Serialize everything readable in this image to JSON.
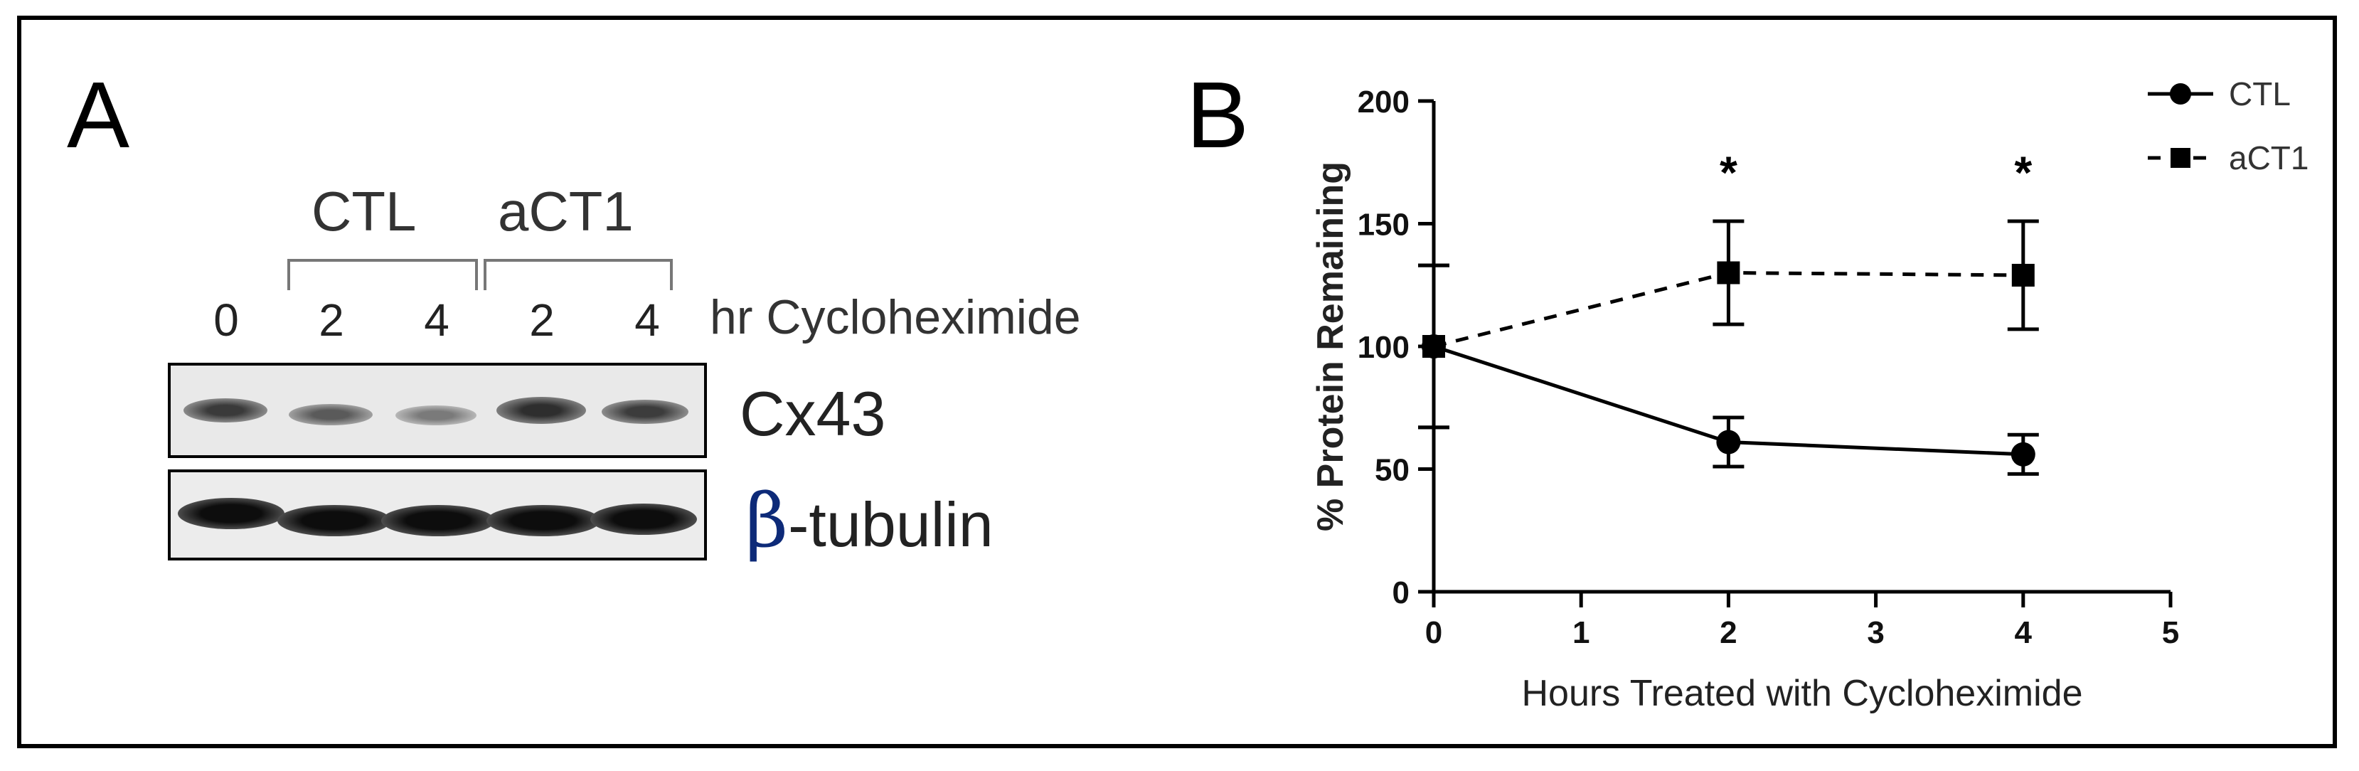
{
  "panel_a": {
    "letter": "A",
    "groups": [
      "CTL",
      "aCT1"
    ],
    "lanes": [
      "0",
      "2",
      "4",
      "2",
      "4"
    ],
    "lane_caption": "hr Cycloheximide",
    "bands": [
      {
        "protein": "Cx43",
        "prefix": "",
        "label": "Cx43"
      },
      {
        "protein": "beta-tubulin",
        "prefix": "β",
        "label": "-tubulin"
      }
    ]
  },
  "panel_b": {
    "letter": "B"
  },
  "chart_data": {
    "type": "line",
    "title": "",
    "xlabel": "Hours Treated with Cycloheximide",
    "ylabel": "% Protein Remaining",
    "xlim": [
      0,
      5
    ],
    "ylim": [
      0,
      200
    ],
    "xticks": [
      0,
      1,
      2,
      3,
      4,
      5
    ],
    "yticks": [
      0,
      50,
      100,
      150,
      200
    ],
    "grid": false,
    "legend_position": "top-right",
    "series": [
      {
        "name": "CTL",
        "marker": "circle",
        "line": "solid",
        "x": [
          0,
          2,
          4
        ],
        "y": [
          100,
          61,
          56
        ],
        "error": [
          33,
          10,
          8
        ]
      },
      {
        "name": "aCT1",
        "marker": "square",
        "line": "dashed",
        "x": [
          0,
          2,
          4
        ],
        "y": [
          100,
          130,
          129
        ],
        "error": [
          33,
          21,
          22
        ]
      }
    ],
    "annotations": [
      {
        "text": "*",
        "x": 2,
        "y": 175
      },
      {
        "text": "*",
        "x": 4,
        "y": 175
      }
    ]
  }
}
